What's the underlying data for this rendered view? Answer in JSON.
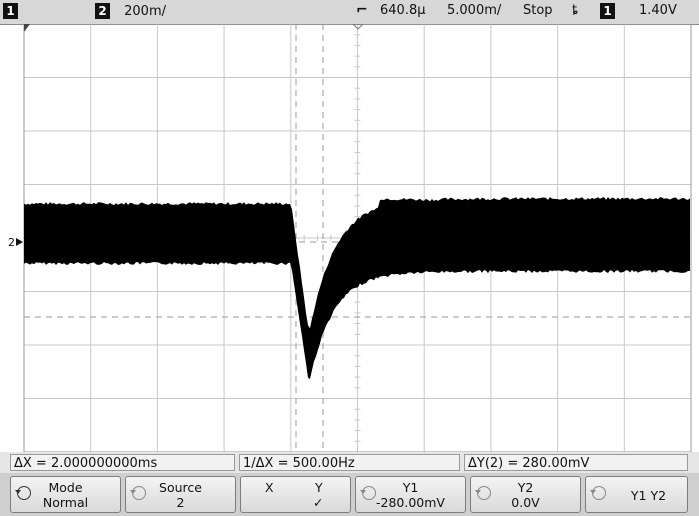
{
  "status_bar": {
    "ch1_number": "1",
    "ch2_number": "2",
    "ch2_scale": "200m/",
    "time_delay": "640.8µ",
    "time_scale": "5.000m/",
    "run_state": "Stop",
    "trigger_slope_glyph": "ȶ",
    "trigger_source": "1",
    "trigger_level": "1.40V"
  },
  "graticule": {
    "background": "#ffffff",
    "grid_color": "#c8c8c8",
    "trace_color": "#000000",
    "cursor_color": "#9a9a9a"
  },
  "ground_marker": {
    "label": "2"
  },
  "measurements": {
    "delta_x": "ΔX = 2.000000000ms",
    "inverse_delta_x": "1/ΔX = 500.00Hz",
    "delta_y": "ΔY(2) = 280.00mV"
  },
  "softkeys": {
    "mode": {
      "label": "Mode",
      "value": "Normal"
    },
    "source": {
      "label": "Source",
      "value": "2"
    },
    "xy": {
      "x_label": "X",
      "y_label": "Y",
      "check": "✓"
    },
    "y1": {
      "label": "Y1",
      "value": "-280.00mV"
    },
    "y2": {
      "label": "Y2",
      "value": "0.0V"
    },
    "y1y2": {
      "label": "Y1 Y2"
    }
  }
}
